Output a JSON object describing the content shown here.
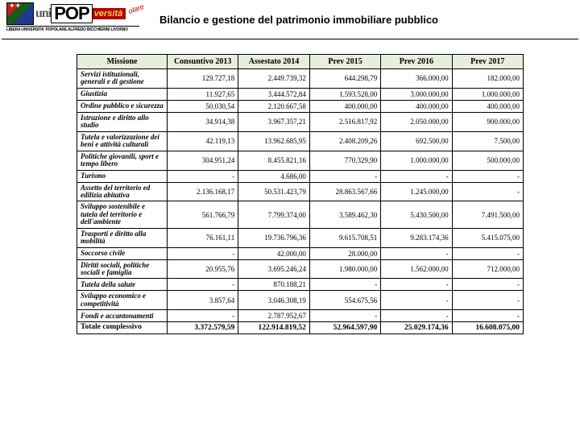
{
  "title": "Bilancio e gestione del patrimonio immobiliare pubblico",
  "logo": {
    "uni": "uni",
    "pop": "POP",
    "versita": "versità",
    "olare": "olare",
    "sub": "LIBERA UNIVERSITA' POPOLARE ALFREDO BICCHIERINI LIVORNO"
  },
  "columns": [
    "Missione",
    "Consuntivo 2013",
    "Assestato 2014",
    "Prev 2015",
    "Prev 2016",
    "Prev 2017"
  ],
  "rows": [
    {
      "label": "Servizi istituzionali, generali e di gestione",
      "c": [
        "129.727,18",
        "2.449.739,32",
        "644.298,79",
        "366.000,00",
        "182.000,00"
      ]
    },
    {
      "label": "Giustizia",
      "c": [
        "11.927,65",
        "3.444.572,84",
        "1.593.528,00",
        "3.000.000,00",
        "1.000.000,00"
      ]
    },
    {
      "label": "Ordine pubblico e sicurezza",
      "c": [
        "50.030,54",
        "2.120.667,58",
        "400.000,00",
        "400.000,00",
        "400.000,00"
      ]
    },
    {
      "label": "Istruzione e diritto allo studio",
      "c": [
        "34.914,38",
        "3.967.357,21",
        "2.516.817,92",
        "2.050.000,00",
        "900.000,00"
      ]
    },
    {
      "label": "Tutela e valorizzazione dei beni e attività culturali",
      "c": [
        "42.119,13",
        "13.962.685,95",
        "2.408.209,26",
        "692.500,00",
        "7.500,00"
      ]
    },
    {
      "label": "Politiche giovanili, sport e tempo libero",
      "c": [
        "304.951,24",
        "8.455.821,16",
        "770.329,90",
        "1.000.000,00",
        "500.000,00"
      ]
    },
    {
      "label": "Turismo",
      "c": [
        "-",
        "4.686,00",
        "-",
        "-",
        "-"
      ]
    },
    {
      "label": "Assetto del territorio ed edilizia abitativa",
      "c": [
        "2.136.168,17",
        "50.531.423,79",
        "28.863.567,66",
        "1.245.000,00",
        "-"
      ]
    },
    {
      "label": "Sviluppo sostenibile e tutela del territorio e dell'ambiente",
      "c": [
        "561.766,79",
        "7.799.374,00",
        "3.589.462,30",
        "5.430.500,00",
        "7.491.500,00"
      ]
    },
    {
      "label": "Trasporti e diritto alla mobilità",
      "c": [
        "76.161,11",
        "19.736.796,36",
        "9.615.708,51",
        "9.283.174,36",
        "5.415.075,00"
      ]
    },
    {
      "label": "Soccorso civile",
      "c": [
        "-",
        "42.000,00",
        "28.000,00",
        "-",
        "-"
      ]
    },
    {
      "label": "Diritti sociali, politiche sociali e famiglia",
      "c": [
        "20.955,76",
        "3.695.246,24",
        "1.980.000,00",
        "1.562.000,00",
        "712.000,00"
      ]
    },
    {
      "label": "Tutela della salute",
      "c": [
        "-",
        "870.188,21",
        "-",
        "-",
        "-"
      ]
    },
    {
      "label": "Sviluppo economico e competitività",
      "c": [
        "3.857,64",
        "3.046.308,19",
        "554.675,56",
        "-",
        "-"
      ]
    },
    {
      "label": "Fondi e accantonamenti",
      "c": [
        "-",
        "2.787.952,67",
        "-",
        "-",
        "-"
      ]
    }
  ],
  "total": {
    "label": "Totale complessivo",
    "c": [
      "3.372.579,59",
      "122.914.819,52",
      "52.964.597,90",
      "25.029.174,36",
      "16.608.075,00"
    ]
  },
  "colors": {
    "header_bg": "#e6efdb",
    "brand_red": "#b30000",
    "brand_yellow": "#f6d94a"
  }
}
